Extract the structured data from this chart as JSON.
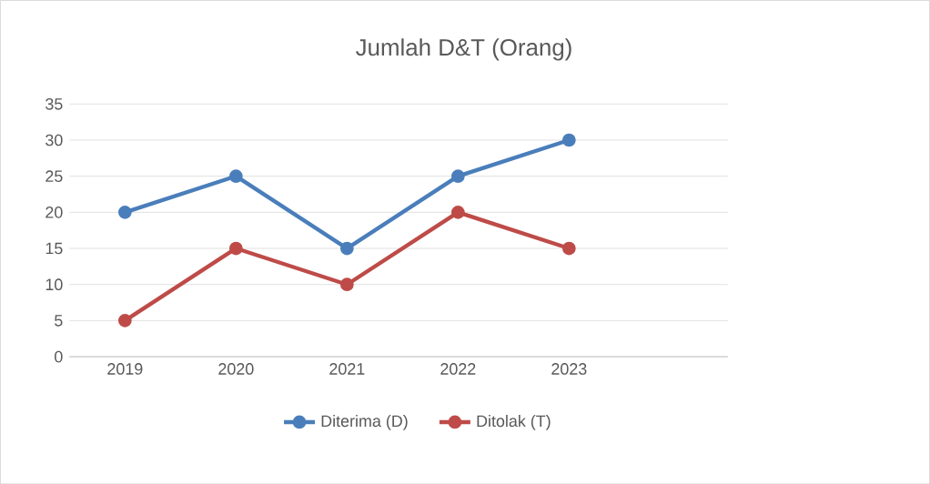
{
  "chart_data": {
    "type": "line",
    "title": "Jumlah D&T (Orang)",
    "categories": [
      "2019",
      "2020",
      "2021",
      "2022",
      "2023"
    ],
    "series": [
      {
        "name": "Diterima (D)",
        "color": "#4a7ebb",
        "values": [
          20,
          25,
          15,
          25,
          30
        ]
      },
      {
        "name": "Ditolak (T)",
        "color": "#be4b48",
        "values": [
          5,
          15,
          10,
          20,
          15
        ]
      }
    ],
    "ylim": [
      0,
      35
    ],
    "yticks": [
      0,
      5,
      10,
      15,
      20,
      25,
      30,
      35
    ],
    "grid": "y",
    "legend": "bottom",
    "marker": "circle",
    "line_style": "solid"
  }
}
